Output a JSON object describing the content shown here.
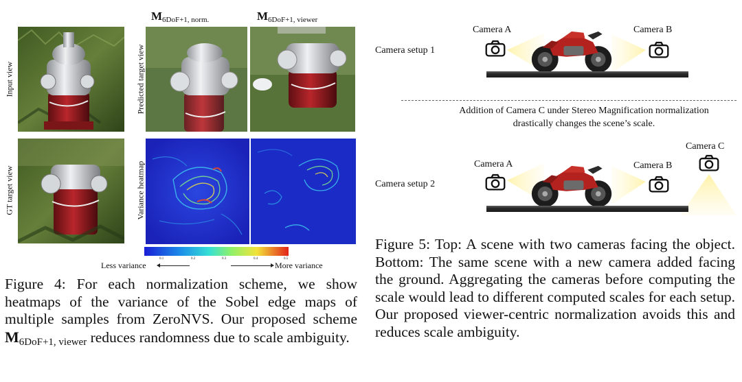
{
  "figure4": {
    "column_headers": [
      {
        "main": "M",
        "sub": "6DoF+1, norm."
      },
      {
        "main": "M",
        "sub": "6DoF+1, viewer"
      }
    ],
    "row_labels": {
      "input": "Input view",
      "predicted": "Predicted target view",
      "gt": "GT target view",
      "variance": "Variance heatmap"
    },
    "colorbar": {
      "ticks": [
        "0.1",
        "0.2",
        "0.3",
        "0.4",
        "0.5"
      ],
      "less": "Less variance",
      "more": "More variance"
    },
    "caption": {
      "prefix": "Figure 4: For each normalization scheme, we show heatmaps of the variance of the Sobel edge maps of multiple samples from ZeroNVS. Our proposed scheme ",
      "math_main": "M",
      "math_sub": "6DoF+1, viewer",
      "suffix": " reduces randomness due to scale ambiguity."
    }
  },
  "figure5": {
    "setup1": {
      "label": "Camera setup 1",
      "camera_a": "Camera A",
      "camera_b": "Camera B"
    },
    "note": "Addition of Camera C under Stereo Magnification normalization drastically changes the scene’s scale.",
    "setup2": {
      "label": "Camera setup 2",
      "camera_a": "Camera A",
      "camera_b": "Camera B",
      "camera_c": "Camera C"
    },
    "caption": "Figure 5: Top: A scene with two cameras facing the object. Bottom: The same scene with a new camera added facing the ground. Aggregating the cameras before computing the scale would lead to different computed scales for each setup. Our proposed viewer-centric normalization avoids this and reduces scale ambiguity."
  },
  "colors": {
    "hydrant_red": "#9e1e22",
    "grass_green": "#4d6b2f",
    "heatmap_low": "#1a2fd1",
    "heatmap_high": "#e8321a",
    "light_beam": "#fbe77a"
  }
}
